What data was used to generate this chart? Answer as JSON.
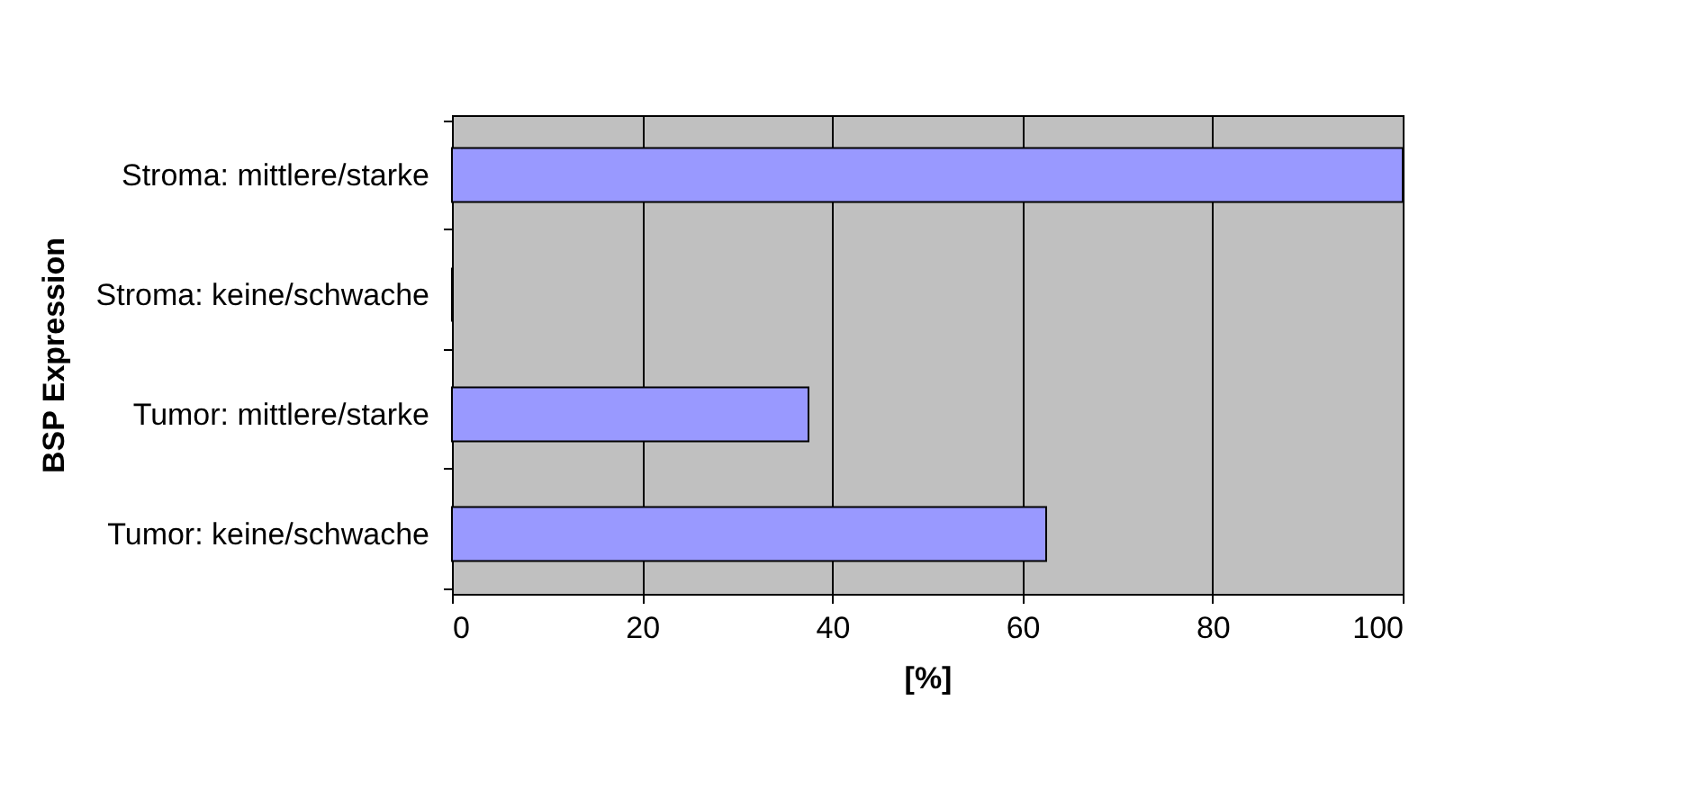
{
  "chart_data": {
    "type": "bar",
    "orientation": "horizontal",
    "categories": [
      "Stroma: mittlere/starke",
      "Stroma: keine/schwache",
      "Tumor: mittlere/starke",
      "Tumor: keine/schwache"
    ],
    "values": [
      100,
      0,
      37.5,
      62.5
    ],
    "color": "#9999ff",
    "xlim": [
      0,
      100
    ],
    "xticks": [
      0,
      20,
      40,
      60,
      80,
      100
    ],
    "grid": "x",
    "xlabel": "[%]",
    "ylabel": "BSP Expression"
  }
}
